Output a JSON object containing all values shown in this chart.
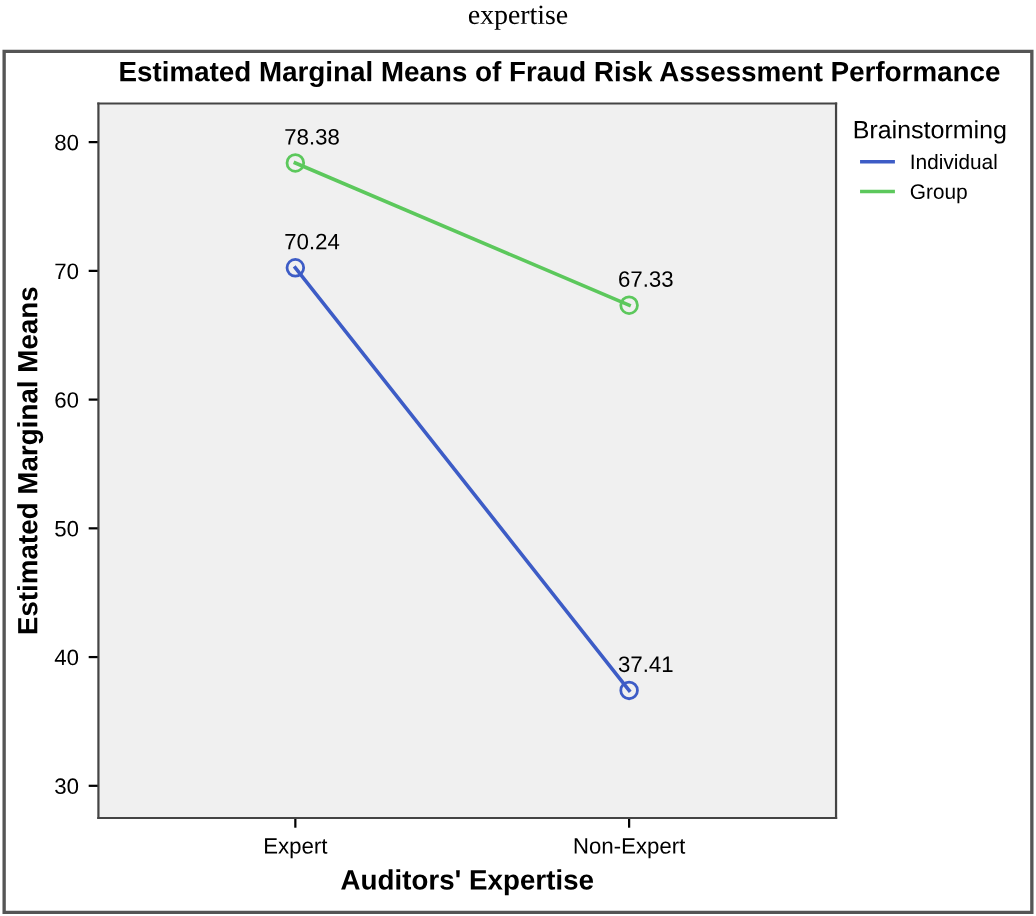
{
  "chart_data": {
    "type": "line",
    "title": "Estimated Marginal Means of Fraud Risk Assessment Performance",
    "xlabel": "Auditors' Expertise",
    "ylabel": "Estimated Marginal Means",
    "legend_title": "Brainstorming",
    "annotations": [
      "expertise"
    ],
    "categories": [
      "Expert",
      "Non-Expert"
    ],
    "series": [
      {
        "name": "Individual",
        "color": "#3d5cc6",
        "values": [
          70.24,
          37.41
        ]
      },
      {
        "name": "Group",
        "color": "#5cc85c",
        "values": [
          78.38,
          67.33
        ]
      }
    ],
    "ylim": [
      27.5,
      83
    ],
    "yticks": [
      30,
      40,
      50,
      60,
      70,
      80
    ],
    "data_labels": true,
    "marker": "circle",
    "line_style": "solid",
    "legend": "top right",
    "grid": false
  }
}
